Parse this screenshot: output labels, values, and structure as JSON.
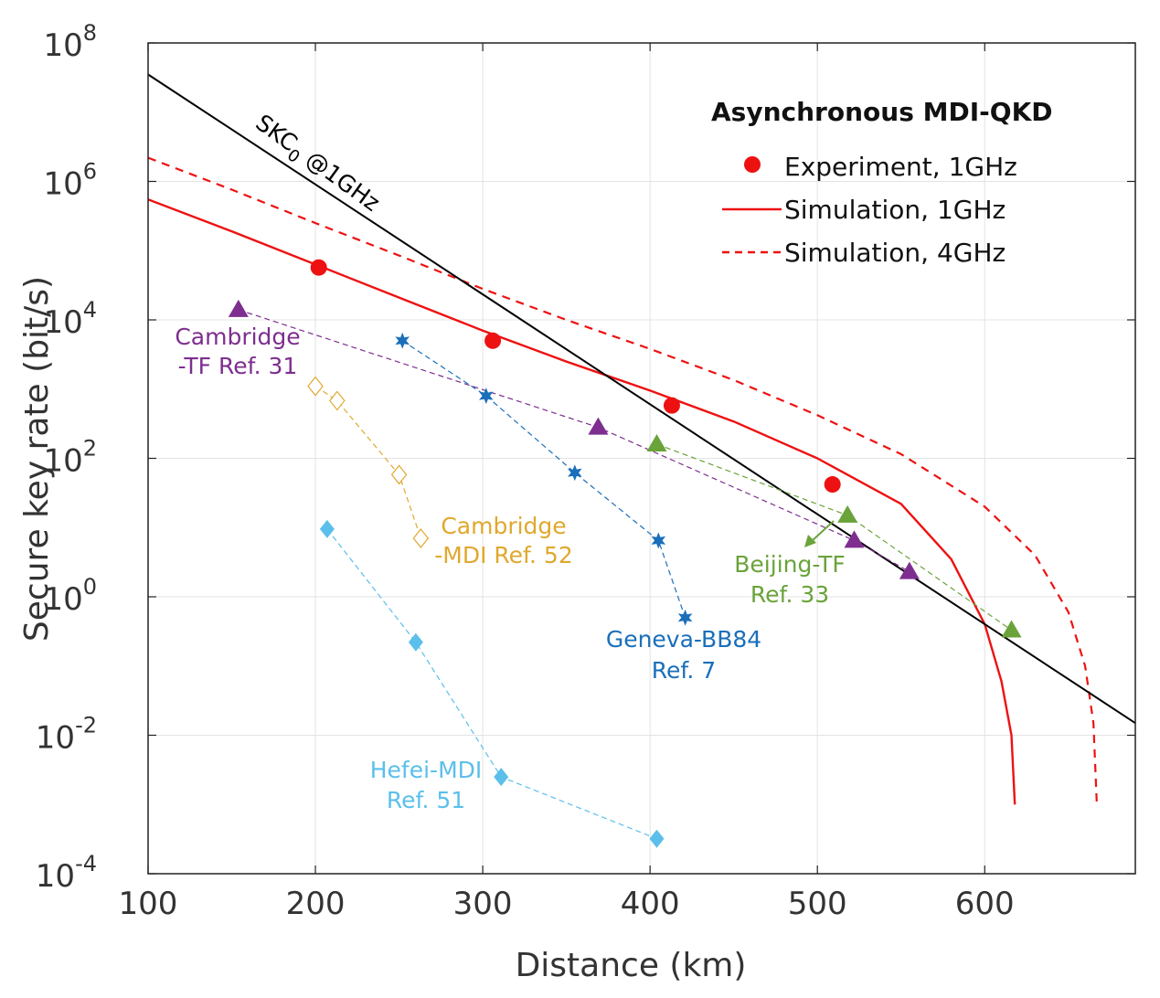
{
  "chart_data": {
    "type": "line",
    "xlabel": "Distance (km)",
    "ylabel": "Secure key rate (bit/s)",
    "xlim": [
      100,
      690
    ],
    "ylim_log10": [
      -4,
      8
    ],
    "y_scale": "log",
    "grid": true,
    "x_ticks": [
      100,
      200,
      300,
      400,
      500,
      600
    ],
    "y_ticks": [
      {
        "exp": -4,
        "base": "10",
        "sup": "-4"
      },
      {
        "exp": -2,
        "base": "10",
        "sup": "-2"
      },
      {
        "exp": 0,
        "base": "10",
        "sup": "0"
      },
      {
        "exp": 2,
        "base": "10",
        "sup": "2"
      },
      {
        "exp": 4,
        "base": "10",
        "sup": "4"
      },
      {
        "exp": 6,
        "base": "10",
        "sup": "6"
      },
      {
        "exp": 8,
        "base": "10",
        "sup": "8"
      }
    ],
    "legend": {
      "title": "Asynchronous MDI-QKD",
      "position": "top-right",
      "entries": [
        "Experiment, 1GHz",
        "Simulation, 1GHz",
        "Simulation, 4GHz"
      ]
    },
    "series": [
      {
        "name": "Experiment, 1GHz",
        "marker": "circle",
        "color": "#ee1111",
        "line": "none",
        "x": [
          202,
          306,
          413,
          509
        ],
        "y": [
          57000,
          5000,
          580,
          42
        ]
      },
      {
        "name": "Simulation, 1GHz",
        "color": "#ee1111",
        "line": "solid",
        "x": [
          100,
          150,
          200,
          250,
          300,
          350,
          400,
          450,
          500,
          550,
          580,
          600,
          610,
          616,
          618
        ],
        "y": [
          550000,
          190000,
          63000,
          21000,
          7000,
          2500,
          950,
          340,
          100,
          22,
          3.5,
          0.4,
          0.06,
          0.01,
          0.001
        ]
      },
      {
        "name": "Simulation, 4GHz",
        "color": "#ee1111",
        "line": "dashed",
        "x": [
          100,
          150,
          200,
          250,
          300,
          350,
          400,
          450,
          500,
          550,
          600,
          630,
          650,
          660,
          665,
          667
        ],
        "y": [
          2200000,
          760000,
          250000,
          85000,
          28000,
          10000,
          3800,
          1350,
          420,
          115,
          20,
          4,
          0.6,
          0.1,
          0.015,
          0.001
        ]
      },
      {
        "label": "SKC0 @1GHz",
        "color": "#000000",
        "line": "solid",
        "x": [
          100,
          690
        ],
        "y": [
          35000000,
          0.015
        ]
      },
      {
        "label": "Cambridge -TF Ref. 31",
        "marker": "triangle",
        "color": "#7d2e8f",
        "line": "dashed",
        "x": [
          154,
          369,
          522,
          555
        ],
        "y": [
          14000,
          280,
          6.5,
          2.3
        ]
      },
      {
        "label": "Geneva-BB84 Ref. 7",
        "marker": "star",
        "color": "#1a6fba",
        "line": "dashed",
        "x": [
          252,
          302,
          355,
          405,
          421
        ],
        "y": [
          5000,
          800,
          62,
          6.5,
          0.5
        ]
      },
      {
        "label": "Cambridge -MDI Ref. 52",
        "marker": "diamond-open",
        "color": "#e0a82e",
        "line": "dashed",
        "x": [
          200,
          213,
          250,
          263
        ],
        "y": [
          1100,
          680,
          58,
          7
        ]
      },
      {
        "label": "Hefei-MDI Ref. 51",
        "marker": "diamond",
        "color": "#5bbfeb",
        "line": "dashed",
        "x": [
          207,
          260,
          311,
          404
        ],
        "y": [
          9.5,
          0.22,
          0.0025,
          0.00032
        ]
      },
      {
        "label": "Beijing-TF Ref. 33",
        "marker": "triangle",
        "color": "#6aa33a",
        "line": "dashed",
        "x": [
          404,
          518,
          616
        ],
        "y": [
          160,
          15,
          0.33
        ]
      }
    ],
    "annotations": [
      {
        "id": "cambridge-tf",
        "lines": [
          "Cambridge",
          "-TF Ref. 31"
        ],
        "color": "#7d2e8f"
      },
      {
        "id": "cambridge-mdi",
        "lines": [
          "Cambridge",
          "-MDI Ref. 52"
        ],
        "color": "#e0a82e"
      },
      {
        "id": "geneva",
        "lines": [
          "Geneva-BB84",
          "Ref. 7"
        ],
        "color": "#1a6fba"
      },
      {
        "id": "beijing",
        "lines": [
          "Beijing-TF",
          "Ref. 33"
        ],
        "color": "#6aa33a"
      },
      {
        "id": "hefei",
        "lines": [
          "Hefei-MDI",
          "Ref. 51"
        ],
        "color": "#5bbfeb"
      }
    ],
    "skc_label": {
      "text": "SKC",
      "sub": "0",
      "after": " @1GHz"
    }
  }
}
